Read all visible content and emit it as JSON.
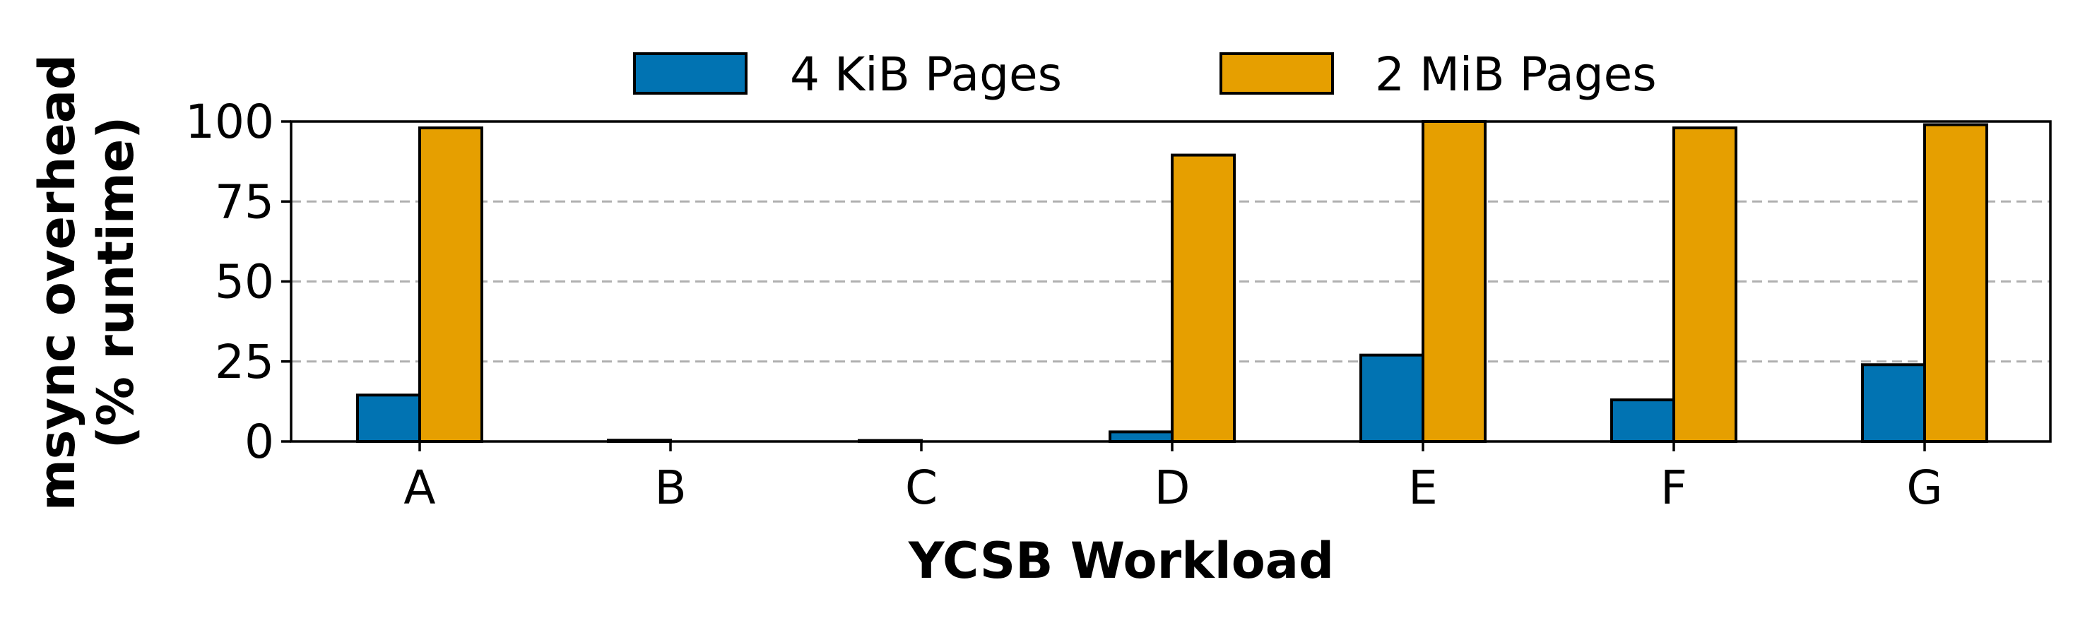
{
  "chart_data": {
    "type": "bar",
    "xlabel": "YCSB Workload",
    "ylabel_lines": [
      "msync overhead",
      "(% runtime)"
    ],
    "categories": [
      "A",
      "B",
      "C",
      "D",
      "E",
      "F",
      "G"
    ],
    "series": [
      {
        "name": "4 KiB Pages",
        "color": "#0173b2",
        "values": [
          14.5,
          0.4,
          0.3,
          3,
          27,
          13,
          24
        ]
      },
      {
        "name": "2 MiB Pages",
        "color": "#e69f00",
        "values": [
          98,
          0,
          0,
          89.5,
          100,
          98,
          99
        ]
      }
    ],
    "ylim": [
      0,
      100
    ],
    "yticks": [
      0,
      25,
      50,
      75,
      100
    ],
    "grid": "y-dashed",
    "legend_placement": "top-center"
  }
}
